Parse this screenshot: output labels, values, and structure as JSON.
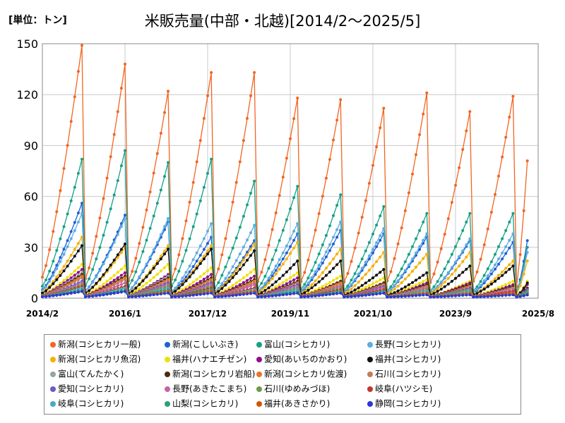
{
  "unit_label": "[単位：トン]",
  "chart_data": {
    "type": "line",
    "title": "米販売量(中部・北越)[2014/2～2025/5]",
    "xlabel": "",
    "ylabel": "",
    "ylim": [
      0,
      150
    ],
    "y_ticks": [
      0,
      30,
      60,
      90,
      120,
      150
    ],
    "x_range": [
      "2014/2",
      "2025/8"
    ],
    "x_ticks": [
      "2014/2",
      "2016/1",
      "2017/12",
      "2019/11",
      "2021/10",
      "2023/9",
      "2025/8"
    ],
    "grid": true,
    "legend_position": "bottom",
    "cycle_peaks": {
      "x": [
        "2015/1",
        "2016/1",
        "2017/1",
        "2018/1",
        "2019/1",
        "2020/1",
        "2021/1",
        "2022/1",
        "2023/1",
        "2024/1",
        "2025/1",
        "2025/5"
      ],
      "note": "sawtooth: cumulative from Feb, resets each year"
    },
    "series": [
      {
        "name": "新潟(コシヒカリ一般)",
        "color": "#f26522",
        "values": [
          149,
          138,
          122,
          133,
          133,
          118,
          117,
          112,
          121,
          110,
          119,
          81
        ]
      },
      {
        "name": "新潟(こしいぶき)",
        "color": "#1f5fd6",
        "values": [
          56,
          49,
          45,
          36,
          34,
          38,
          40,
          38,
          36,
          34,
          33,
          34
        ]
      },
      {
        "name": "富山(コシヒカリ)",
        "color": "#16a085",
        "values": [
          82,
          87,
          80,
          82,
          69,
          66,
          61,
          54,
          50,
          50,
          50,
          30
        ]
      },
      {
        "name": "長野(コシヒカリ)",
        "color": "#5dade2",
        "values": [
          50,
          47,
          47,
          44,
          43,
          44,
          45,
          41,
          38,
          35,
          38,
          27
        ]
      },
      {
        "name": "新潟(コシヒカリ魚沼)",
        "color": "#f5b000",
        "values": [
          36,
          30,
          31,
          31,
          32,
          33,
          29,
          27,
          26,
          27,
          22,
          22
        ]
      },
      {
        "name": "福井(ハナエチゼン)",
        "color": "#f0e000",
        "values": [
          20,
          19,
          20,
          18,
          17,
          15,
          13,
          12,
          11,
          10,
          10,
          10
        ]
      },
      {
        "name": "愛知(あいちのかおり)",
        "color": "#8e0f8e",
        "values": [
          17,
          15,
          14,
          14,
          13,
          12,
          10,
          9,
          9,
          9,
          8,
          8
        ]
      },
      {
        "name": "福井(コシヒカリ)",
        "color": "#111111",
        "values": [
          31,
          32,
          29,
          29,
          28,
          22,
          22,
          17,
          15,
          19,
          19,
          9
        ]
      },
      {
        "name": "富山(てんたかく)",
        "color": "#95a5a6",
        "values": [
          15,
          13,
          13,
          12,
          11,
          10,
          9,
          8,
          8,
          7,
          7,
          6
        ]
      },
      {
        "name": "新潟(コシヒカリ岩船)",
        "color": "#4a2c12",
        "values": [
          14,
          13,
          12,
          12,
          11,
          10,
          10,
          9,
          8,
          8,
          7,
          6
        ]
      },
      {
        "name": "新潟(コシヒカリ佐渡)",
        "color": "#e8742a",
        "values": [
          13,
          12,
          11,
          11,
          10,
          9,
          9,
          8,
          7,
          7,
          6,
          5
        ]
      },
      {
        "name": "石川(コシヒカリ)",
        "color": "#c97a5c",
        "values": [
          12,
          11,
          10,
          10,
          9,
          9,
          8,
          7,
          7,
          6,
          6,
          5
        ]
      },
      {
        "name": "愛知(コシヒカリ)",
        "color": "#6a5acd",
        "values": [
          10,
          9,
          9,
          9,
          8,
          8,
          7,
          7,
          6,
          6,
          5,
          5
        ]
      },
      {
        "name": "長野(あきたこまち)",
        "color": "#c464a8",
        "values": [
          9,
          9,
          8,
          8,
          8,
          7,
          7,
          6,
          6,
          5,
          5,
          4
        ]
      },
      {
        "name": "石川(ゆめみづほ)",
        "color": "#6e9a4b",
        "values": [
          8,
          7,
          7,
          7,
          6,
          6,
          6,
          5,
          5,
          5,
          4,
          4
        ]
      },
      {
        "name": "岐阜(ハツシモ)",
        "color": "#c0392b",
        "values": [
          7,
          7,
          6,
          6,
          6,
          5,
          5,
          5,
          4,
          4,
          4,
          3
        ]
      },
      {
        "name": "岐阜(コシヒカリ)",
        "color": "#48a9c5",
        "values": [
          6,
          6,
          6,
          5,
          5,
          5,
          4,
          4,
          4,
          4,
          3,
          3
        ]
      },
      {
        "name": "山梨(コシヒカリ)",
        "color": "#2e9e7a",
        "values": [
          5,
          5,
          5,
          5,
          4,
          4,
          4,
          4,
          3,
          3,
          3,
          3
        ]
      },
      {
        "name": "福井(あきさかり)",
        "color": "#d35400",
        "values": [
          4,
          4,
          4,
          4,
          4,
          3,
          3,
          3,
          3,
          3,
          3,
          2
        ]
      },
      {
        "name": "静岡(コシヒカリ)",
        "color": "#2838d8",
        "values": [
          4,
          4,
          3,
          3,
          3,
          3,
          3,
          3,
          2,
          2,
          2,
          2
        ]
      }
    ]
  }
}
